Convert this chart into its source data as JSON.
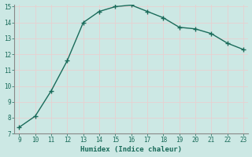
{
  "x": [
    9,
    10,
    11,
    12,
    13,
    14,
    15,
    16,
    17,
    18,
    19,
    20,
    21,
    22,
    23
  ],
  "y": [
    7.4,
    8.1,
    9.7,
    11.6,
    14.0,
    14.7,
    15.0,
    15.1,
    14.7,
    14.3,
    13.7,
    13.6,
    13.3,
    12.7,
    12.3
  ],
  "xlabel": "Humidex (Indice chaleur)",
  "xlim": [
    9,
    23
  ],
  "ylim": [
    7,
    15
  ],
  "yticks": [
    7,
    8,
    9,
    10,
    11,
    12,
    13,
    14,
    15
  ],
  "xticks": [
    9,
    10,
    11,
    12,
    13,
    14,
    15,
    16,
    17,
    18,
    19,
    20,
    21,
    22,
    23
  ],
  "line_color": "#1a6b5a",
  "marker": "+",
  "marker_size": 4,
  "marker_lw": 1.0,
  "bg_color": "#cce8e4",
  "grid_color": "#e8d0d0",
  "tick_color": "#1a6b5a",
  "label_color": "#1a6b5a",
  "font_family": "monospace",
  "spine_color": "#888888"
}
